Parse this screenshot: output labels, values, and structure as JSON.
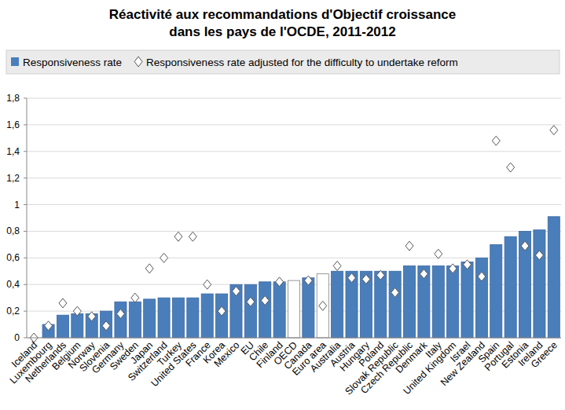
{
  "chart_data": {
    "type": "bar",
    "title": "Réactivité aux recommandations d'Objectif croissance\ndans les pays de l'OCDE, 2011-2012",
    "categories": [
      "Iceland",
      "Luxembourg",
      "Netherlands",
      "Belgium",
      "Norway",
      "Slovenia",
      "Germany",
      "Sweden",
      "Japan",
      "Switzerland",
      "Turkey",
      "United States",
      "France",
      "Korea",
      "Mexico",
      "EU",
      "Chile",
      "Finland",
      "OECD",
      "Canada",
      "Euro area",
      "Australia",
      "Austria",
      "Hungary",
      "Poland",
      "Slovak Republic",
      "Czech Republic",
      "Denmark",
      "Italy",
      "United Kingdom",
      "Israel",
      "New Zealand",
      "Spain",
      "Portugal",
      "Estonia",
      "Ireland",
      "Greece"
    ],
    "series": [
      {
        "name": "Responsiveness rate",
        "type": "bar",
        "color": "#4a7ebb",
        "colors": [
          "#4a7ebb",
          "#4a7ebb",
          "#4a7ebb",
          "#4a7ebb",
          "#4a7ebb",
          "#4a7ebb",
          "#4a7ebb",
          "#4a7ebb",
          "#4a7ebb",
          "#4a7ebb",
          "#4a7ebb",
          "#4a7ebb",
          "#4a7ebb",
          "#4a7ebb",
          "#4a7ebb",
          "#4a7ebb",
          "#4a7ebb",
          "#4a7ebb",
          "#ffffff",
          "#4a7ebb",
          "#ffffff",
          "#4a7ebb",
          "#4a7ebb",
          "#4a7ebb",
          "#4a7ebb",
          "#4a7ebb",
          "#4a7ebb",
          "#4a7ebb",
          "#4a7ebb",
          "#4a7ebb",
          "#4a7ebb",
          "#4a7ebb",
          "#4a7ebb",
          "#4a7ebb",
          "#4a7ebb",
          "#4a7ebb",
          "#4a7ebb"
        ],
        "values": [
          0,
          0.1,
          0.17,
          0.18,
          0.18,
          0.2,
          0.27,
          0.27,
          0.29,
          0.3,
          0.3,
          0.3,
          0.33,
          0.33,
          0.4,
          0.4,
          0.42,
          0.42,
          0.43,
          0.45,
          0.48,
          0.5,
          0.5,
          0.5,
          0.5,
          0.5,
          0.54,
          0.54,
          0.54,
          0.54,
          0.57,
          0.6,
          0.7,
          0.76,
          0.8,
          0.81,
          0.91
        ]
      },
      {
        "name": "Responsiveness rate adjusted for the difficulty to undertake reform",
        "type": "scatter",
        "marker": "diamond",
        "color": "#ffffff",
        "values": [
          0,
          0.09,
          0.26,
          0.2,
          0.16,
          0.09,
          0.18,
          0.3,
          0.52,
          0.6,
          0.76,
          0.76,
          0.4,
          0.2,
          0.35,
          0.27,
          0.28,
          0.42,
          null,
          0.43,
          0.24,
          0.54,
          0.45,
          0.44,
          0.47,
          0.34,
          0.69,
          0.48,
          0.63,
          0.52,
          0.55,
          0.46,
          1.48,
          1.28,
          0.69,
          0.62,
          1.56
        ]
      }
    ],
    "ylim": [
      0,
      1.8
    ],
    "yticks": [
      0,
      {
        "value": 0.2,
        "label": "0,2"
      },
      {
        "value": 0.4,
        "label": "0,4"
      },
      {
        "value": 0.6,
        "label": "0,6"
      },
      {
        "value": 0.8,
        "label": "0,8"
      },
      1,
      {
        "value": 1.2,
        "label": "1,2"
      },
      {
        "value": 1.4,
        "label": "1,4"
      },
      {
        "value": 1.6,
        "label": "1,6"
      },
      {
        "value": 1.8,
        "label": "1,8"
      }
    ],
    "grid": true,
    "legend": "top"
  }
}
